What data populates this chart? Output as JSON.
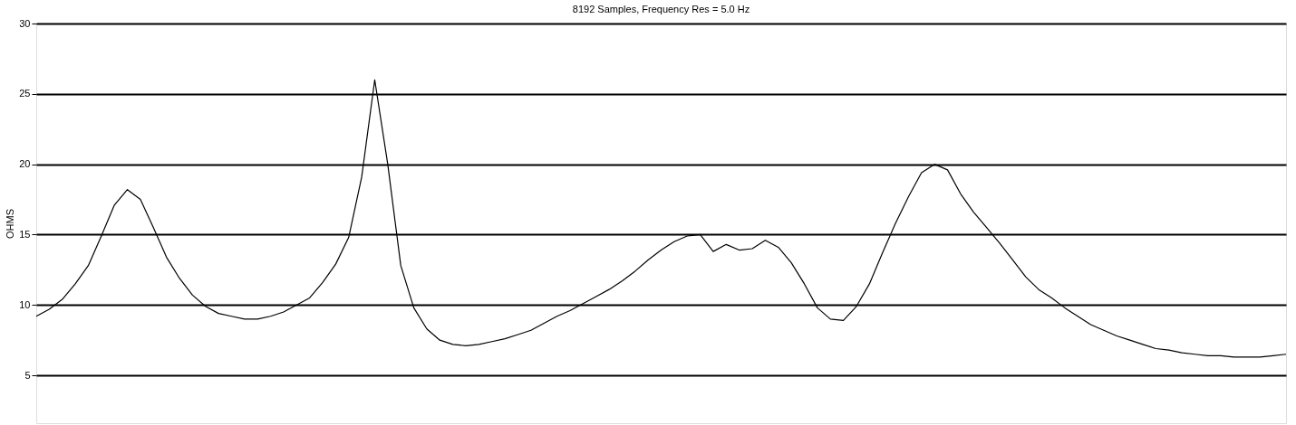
{
  "chart_data": {
    "type": "line",
    "title": "8192 Samples, Frequency Res = 5.0 Hz",
    "ylabel": "OHMS",
    "categories": [
      null,
      null,
      null,
      null,
      null,
      null,
      null,
      null,
      null,
      null,
      null,
      null,
      null,
      null,
      null,
      null,
      null,
      null,
      null,
      null,
      null,
      null,
      null,
      null,
      null,
      null,
      null,
      null,
      null,
      null,
      null,
      null,
      null,
      null,
      null,
      null,
      null,
      null,
      null,
      null,
      null,
      null,
      null,
      null,
      null,
      null,
      null,
      null,
      null,
      null,
      null,
      null,
      null,
      null,
      null,
      null,
      null,
      null,
      null,
      null,
      null,
      null,
      null,
      null,
      null,
      null,
      null,
      null,
      null,
      null,
      null,
      null,
      null,
      null,
      null,
      null,
      null,
      null,
      null,
      null,
      null,
      null,
      null,
      null,
      null,
      null,
      null,
      null,
      null,
      null,
      null,
      null,
      null,
      null,
      null,
      null,
      null
    ],
    "series": [
      {
        "color": "#000000",
        "values": [
          9.2,
          9.7,
          10.4,
          11.5,
          12.8,
          14.9,
          17.1,
          18.2,
          17.5,
          15.5,
          13.4,
          11.9,
          10.7,
          9.9,
          9.4,
          9.2,
          9.0,
          9.0,
          9.2,
          9.5,
          10.0,
          10.5,
          11.6,
          12.9,
          14.8,
          19.1,
          26.0,
          20.0,
          12.8,
          9.8,
          8.3,
          7.5,
          7.2,
          7.1,
          7.2,
          7.4,
          7.6,
          7.9,
          8.2,
          8.7,
          9.2,
          9.6,
          10.1,
          10.6,
          11.1,
          11.7,
          12.4,
          13.2,
          13.9,
          14.5,
          14.9,
          15.0,
          13.8,
          14.3,
          13.9,
          14.0,
          14.6,
          14.1,
          13.0,
          11.5,
          9.8,
          9.0,
          8.9,
          9.9,
          11.5,
          13.7,
          15.8,
          17.7,
          19.4,
          20.0,
          19.6,
          17.9,
          16.6,
          15.5,
          14.4,
          13.2,
          12.0,
          11.1,
          10.5,
          9.8,
          9.2,
          8.6,
          8.2,
          7.8,
          7.5,
          7.2,
          6.9,
          6.8,
          6.6,
          6.5,
          6.4,
          6.4,
          6.3,
          6.3,
          6.3,
          6.4,
          6.5
        ]
      }
    ],
    "ylim": [
      1.6,
      30
    ],
    "yticks": [
      5,
      10,
      15,
      20,
      25,
      30
    ],
    "grid": "y",
    "tick_labels": "y"
  }
}
